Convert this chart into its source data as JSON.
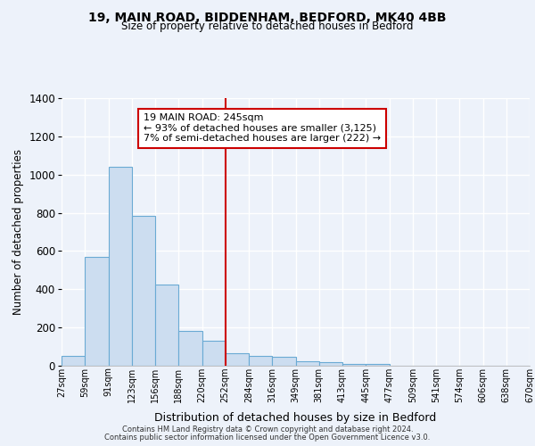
{
  "title": "19, MAIN ROAD, BIDDENHAM, BEDFORD, MK40 4BB",
  "subtitle": "Size of property relative to detached houses in Bedford",
  "xlabel": "Distribution of detached houses by size in Bedford",
  "ylabel": "Number of detached properties",
  "bin_labels": [
    "27sqm",
    "59sqm",
    "91sqm",
    "123sqm",
    "156sqm",
    "188sqm",
    "220sqm",
    "252sqm",
    "284sqm",
    "316sqm",
    "349sqm",
    "381sqm",
    "413sqm",
    "445sqm",
    "477sqm",
    "509sqm",
    "541sqm",
    "574sqm",
    "606sqm",
    "638sqm",
    "670sqm"
  ],
  "bar_values": [
    50,
    570,
    1040,
    785,
    425,
    180,
    130,
    65,
    50,
    48,
    25,
    18,
    10,
    8,
    0,
    0,
    0,
    0,
    0,
    0
  ],
  "bar_color": "#ccddf0",
  "bar_edge_color": "#6aaad4",
  "vline_x": 7,
  "vline_color": "#cc0000",
  "annotation_title": "19 MAIN ROAD: 245sqm",
  "annotation_line1": "← 93% of detached houses are smaller (3,125)",
  "annotation_line2": "7% of semi-detached houses are larger (222) →",
  "annotation_box_color": "#ffffff",
  "annotation_box_edge_color": "#cc0000",
  "ylim": [
    0,
    1400
  ],
  "yticks": [
    0,
    200,
    400,
    600,
    800,
    1000,
    1200,
    1400
  ],
  "bg_color": "#edf2fa",
  "grid_color": "#ffffff",
  "footer1": "Contains HM Land Registry data © Crown copyright and database right 2024.",
  "footer2": "Contains public sector information licensed under the Open Government Licence v3.0."
}
